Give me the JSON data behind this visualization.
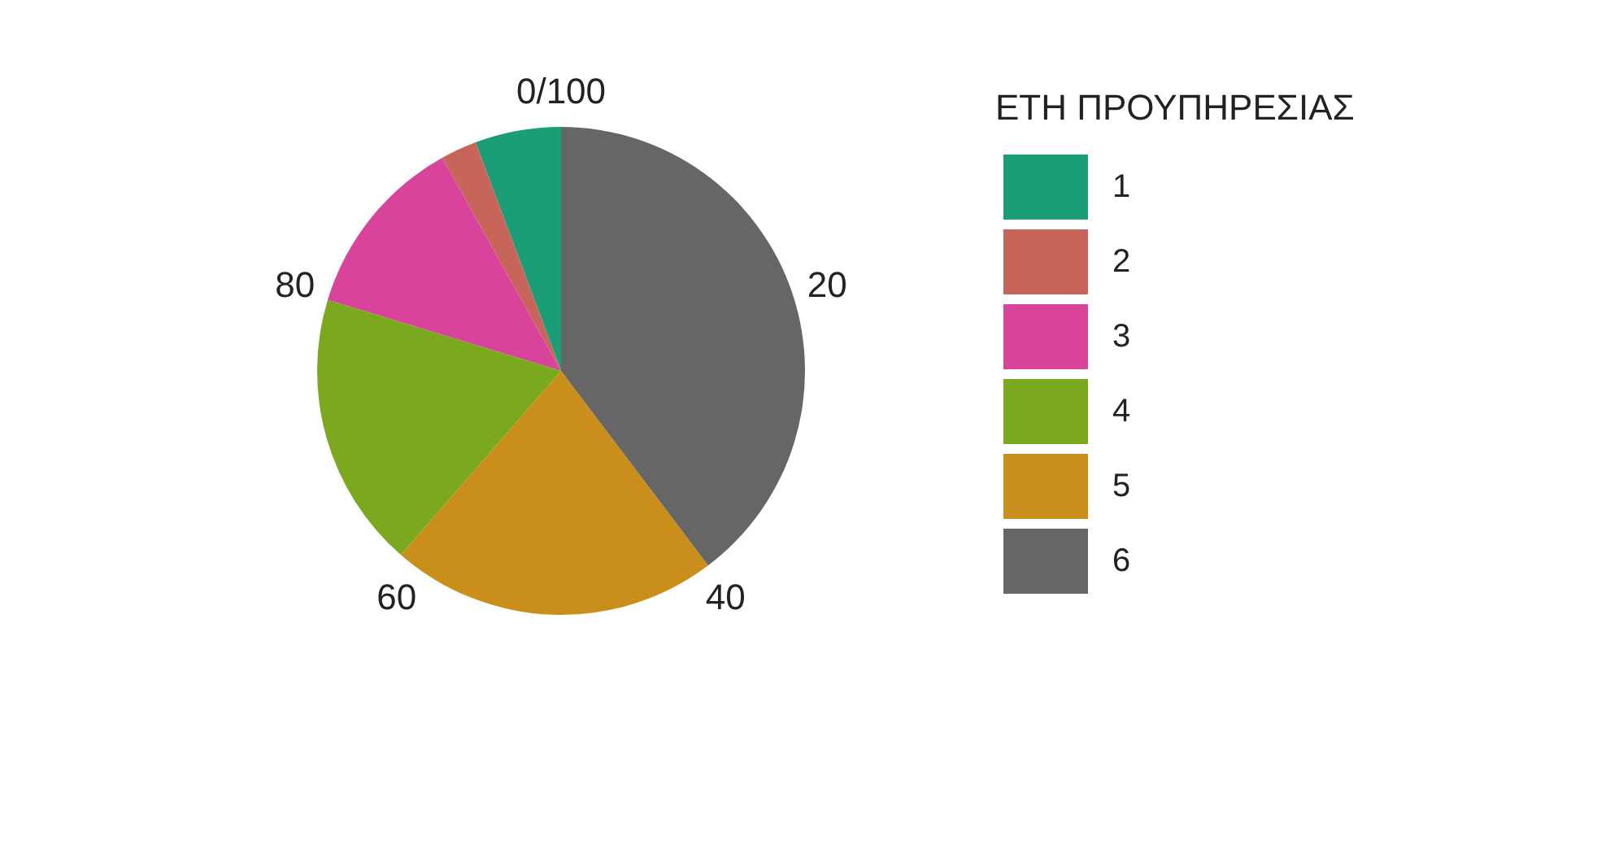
{
  "chart_data": {
    "type": "pie",
    "legend_title": "ΕΤΗ ΠΡΟΥΠΗΡΕΣΙΑΣ",
    "categories": [
      "1",
      "2",
      "3",
      "4",
      "5",
      "6"
    ],
    "values": [
      5.7,
      2.4,
      12.2,
      18.3,
      21.7,
      39.7
    ],
    "colors": [
      "#1b9e77",
      "#c8655a",
      "#d8439b",
      "#7aa81e",
      "#c98f1a",
      "#666666"
    ],
    "annotations": [
      "0/100",
      "20",
      "40",
      "60",
      "80"
    ],
    "legend": "right"
  }
}
